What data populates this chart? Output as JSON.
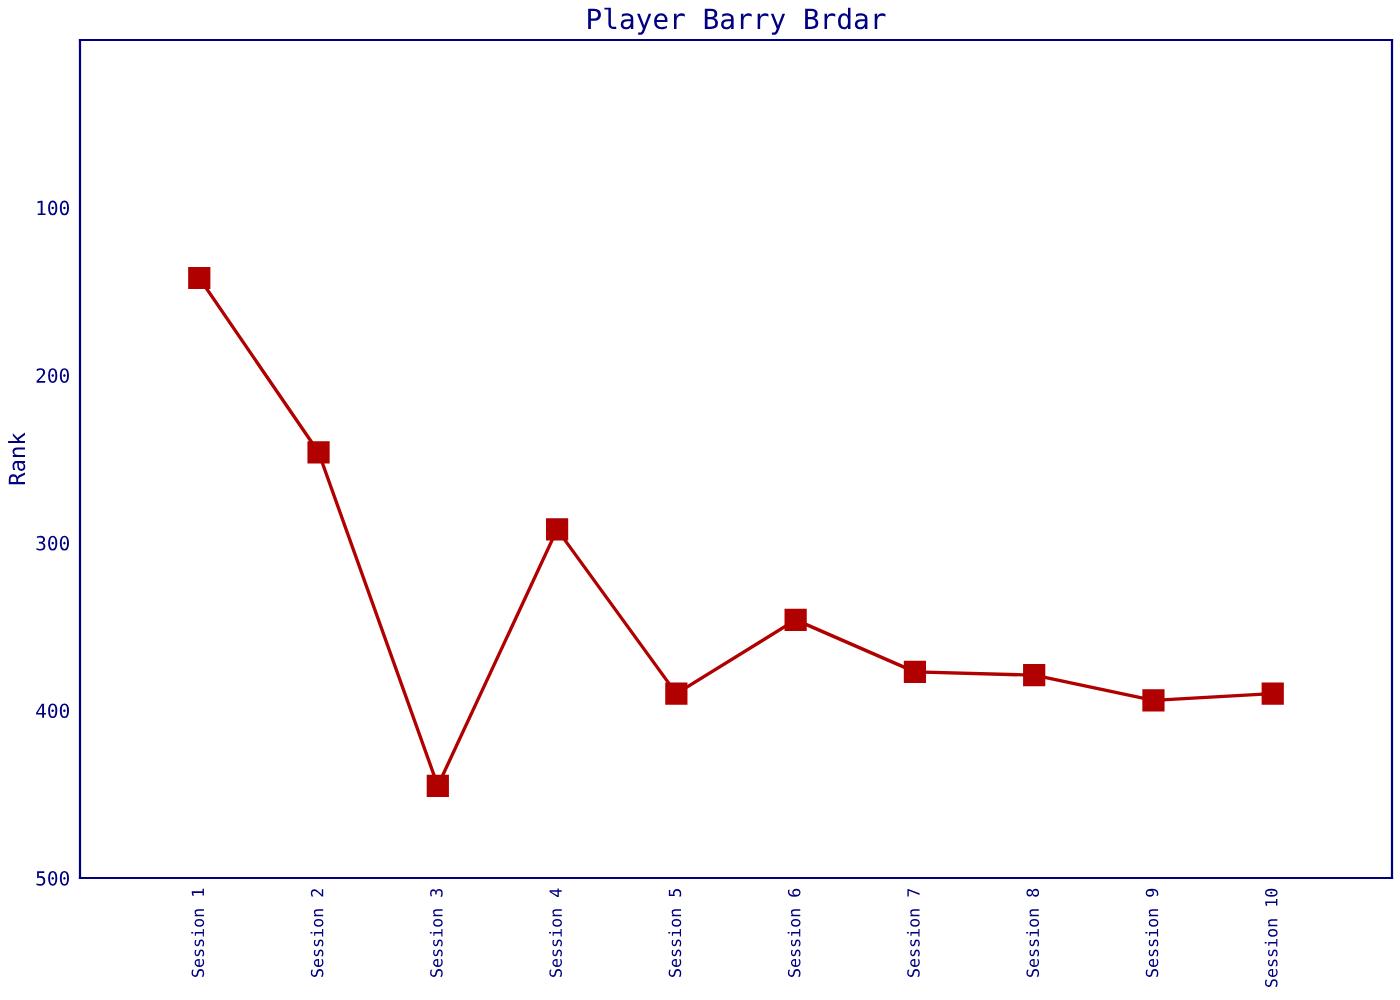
{
  "chart_data": {
    "type": "line",
    "title": "Player Barry Brdar",
    "ylabel": "Rank",
    "categories": [
      "Session 1",
      "Session 2",
      "Session 3",
      "Session 4",
      "Session 5",
      "Session 6",
      "Session 7",
      "Session 8",
      "Session 9",
      "Session 10"
    ],
    "series": [
      {
        "color": "#b00000",
        "values": [
          142,
          246,
          445,
          292,
          390,
          346,
          377,
          379,
          394,
          390
        ]
      }
    ],
    "ylim": [
      500,
      0
    ],
    "yticks": [
      100,
      200,
      300,
      400,
      500
    ],
    "marker": "square",
    "line_style": "solid",
    "grid": false,
    "legend": false
  }
}
